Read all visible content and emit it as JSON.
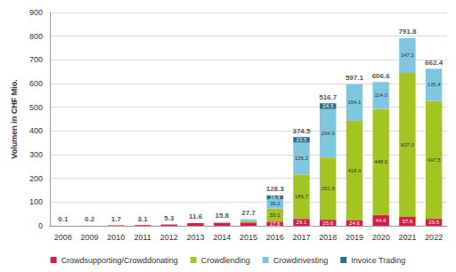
{
  "chart_data": {
    "type": "bar",
    "stacked": true,
    "data_labels": true,
    "grid": true,
    "legend": "bottom",
    "y_label": "Volumen in CHF Mio.",
    "categories": [
      "2008",
      "2009",
      "2010",
      "2011",
      "2012",
      "2013",
      "2014",
      "2015",
      "2016",
      "2017",
      "2018",
      "2019",
      "2020",
      "2021",
      "2022"
    ],
    "ylim": [
      0,
      900
    ],
    "yticks": [
      0,
      100,
      200,
      300,
      400,
      500,
      600,
      700,
      800,
      900
    ],
    "totals": [
      0.1,
      0.2,
      1.7,
      3.1,
      5.3,
      11.6,
      15.8,
      27.7,
      128.3,
      374.5,
      516.7,
      597.1,
      606.6,
      791.8,
      662.4
    ],
    "series": [
      {
        "name": "Crowdsupporting/Crowddonating",
        "color": "#d91a48",
        "values": [
          0.1,
          0.2,
          1.7,
          3.1,
          5.3,
          11.6,
          11.6,
          13.6,
          17.6,
          29.1,
          25.6,
          24.6,
          44.6,
          37.6,
          29.5
        ],
        "value_labels": [
          null,
          null,
          null,
          null,
          null,
          null,
          null,
          null,
          "17.6",
          "29.1",
          "25.6",
          "24.6",
          "44.6",
          "37.6",
          "29.5"
        ]
      },
      {
        "name": "Crowdlending",
        "color": "#a3c521",
        "values": [
          0,
          0,
          0,
          0,
          0,
          0,
          0.8,
          5.9,
          55.1,
          186.7,
          261.9,
          418.4,
          448.0,
          607.0,
          497.5
        ],
        "value_labels": [
          null,
          null,
          null,
          null,
          null,
          null,
          null,
          null,
          "55.1",
          "186.7",
          "261.9",
          "418.4",
          "448.0",
          "607.0",
          "497.5"
        ]
      },
      {
        "name": "Crowdinvesting",
        "color": "#7fc7e0",
        "values": [
          0,
          0,
          0,
          0,
          0,
          0,
          3.4,
          8.2,
          39.2,
          135.2,
          204.9,
          154.1,
          114.0,
          147.2,
          135.4
        ],
        "value_labels": [
          null,
          null,
          null,
          null,
          null,
          null,
          null,
          null,
          "39.2",
          "135.2",
          "204.9",
          "154.1",
          "114.0",
          "147.2",
          "135.4"
        ]
      },
      {
        "name": "Invoice Trading",
        "color": "#2f6f8c",
        "values": [
          0,
          0,
          0,
          0,
          0,
          0,
          0,
          0,
          16.4,
          23.5,
          24.3,
          0,
          0,
          0,
          0
        ],
        "value_labels": [
          null,
          null,
          null,
          null,
          null,
          null,
          null,
          null,
          "16.4",
          "23.5",
          "24.3",
          null,
          null,
          null,
          null
        ]
      }
    ]
  }
}
